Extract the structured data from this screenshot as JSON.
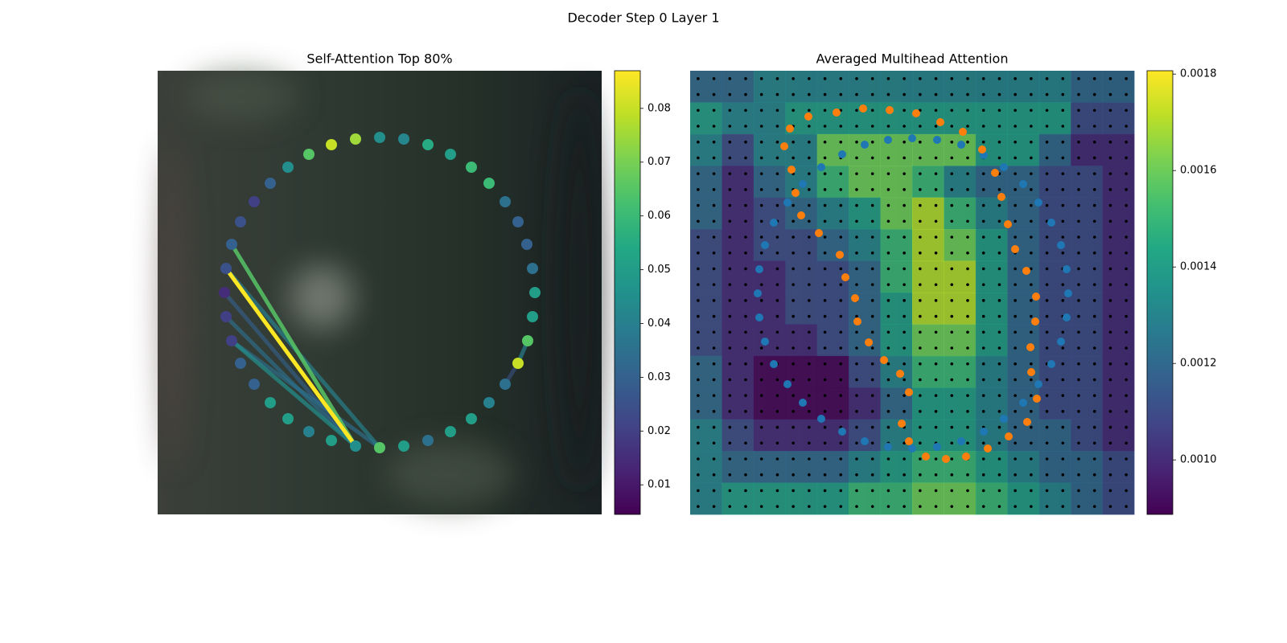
{
  "title": "Decoder Step 0 Layer 1",
  "chart_data": [
    {
      "type": "scatter",
      "title": "Self-Attention Top 80%",
      "cmap": "viridis",
      "xlim": [
        0,
        552
      ],
      "ylim": [
        552,
        0
      ],
      "x": [
        276,
        306,
        336,
        364,
        390,
        412,
        432,
        448,
        459,
        466,
        469,
        466,
        460,
        448,
        432,
        412,
        390,
        364,
        336,
        306,
        276,
        246,
        216,
        188,
        162,
        140,
        120,
        103,
        92,
        85,
        83,
        85,
        92,
        103,
        120,
        140,
        162,
        188,
        216,
        246
      ],
      "y": [
        83,
        85,
        92,
        104,
        120,
        140,
        163,
        188,
        216,
        246,
        276,
        306,
        336,
        364,
        390,
        413,
        433,
        449,
        460,
        467,
        469,
        467,
        460,
        449,
        433,
        413,
        390,
        364,
        336,
        306,
        276,
        246,
        216,
        188,
        163,
        140,
        120,
        104,
        92,
        85
      ],
      "values": [
        0.045,
        0.042,
        0.055,
        0.05,
        0.06,
        0.06,
        0.035,
        0.03,
        0.03,
        0.035,
        0.05,
        0.05,
        0.065,
        0.08,
        0.035,
        0.04,
        0.05,
        0.05,
        0.035,
        0.05,
        0.065,
        0.045,
        0.05,
        0.04,
        0.05,
        0.05,
        0.03,
        0.03,
        0.02,
        0.02,
        0.015,
        0.025,
        0.03,
        0.025,
        0.02,
        0.03,
        0.045,
        0.065,
        0.08,
        0.075
      ],
      "links": {
        "from": [
          21,
          21,
          21,
          21,
          21,
          20,
          20,
          12,
          13
        ],
        "to": [
          32,
          31,
          28,
          29,
          30,
          31,
          28,
          13,
          14
        ],
        "values": [
          0.065,
          0.087,
          0.045,
          0.035,
          0.03,
          0.04,
          0.035,
          0.04,
          0.025
        ]
      },
      "clim": [
        0.0045,
        0.087
      ],
      "cticks": [
        0.01,
        0.02,
        0.03,
        0.04,
        0.05,
        0.06,
        0.07,
        0.08
      ]
    },
    {
      "type": "heatmap",
      "title": "Averaged Multihead Attention",
      "cmap": "viridis",
      "xlim": [
        0,
        552
      ],
      "ylim": [
        552,
        0
      ],
      "z": [
        [
          0.0012,
          0.0012,
          0.0013,
          0.0013,
          0.0013,
          0.0013,
          0.0013,
          0.0013,
          0.0013,
          0.0013,
          0.0013,
          0.0013,
          0.0012,
          0.0012
        ],
        [
          0.0014,
          0.0013,
          0.0013,
          0.0014,
          0.0014,
          0.0014,
          0.0014,
          0.0014,
          0.0014,
          0.0014,
          0.0014,
          0.0014,
          0.0011,
          0.0011
        ],
        [
          0.0013,
          0.0011,
          0.0013,
          0.0013,
          0.0016,
          0.0016,
          0.0016,
          0.0016,
          0.0016,
          0.0014,
          0.0014,
          0.0012,
          0.001,
          0.001
        ],
        [
          0.0012,
          0.001,
          0.0012,
          0.0013,
          0.0015,
          0.0016,
          0.0016,
          0.0015,
          0.0013,
          0.0012,
          0.0012,
          0.0011,
          0.0011,
          0.001
        ],
        [
          0.0012,
          0.001,
          0.0011,
          0.0012,
          0.0013,
          0.0014,
          0.0016,
          0.0017,
          0.0015,
          0.0013,
          0.0012,
          0.0011,
          0.0011,
          0.001
        ],
        [
          0.0011,
          0.001,
          0.0011,
          0.0011,
          0.0012,
          0.0013,
          0.0015,
          0.0017,
          0.0016,
          0.0014,
          0.0012,
          0.0011,
          0.0011,
          0.001
        ],
        [
          0.0011,
          0.001,
          0.001,
          0.0011,
          0.0011,
          0.0012,
          0.0015,
          0.0017,
          0.0017,
          0.0014,
          0.0012,
          0.0011,
          0.0011,
          0.001
        ],
        [
          0.0011,
          0.001,
          0.001,
          0.0011,
          0.0011,
          0.0012,
          0.0014,
          0.0017,
          0.0017,
          0.0014,
          0.0012,
          0.0011,
          0.0011,
          0.001
        ],
        [
          0.0011,
          0.001,
          0.001,
          0.001,
          0.0011,
          0.0012,
          0.0014,
          0.0016,
          0.0016,
          0.0014,
          0.0012,
          0.0011,
          0.0011,
          0.001
        ],
        [
          0.0012,
          0.001,
          0.0009,
          0.0009,
          0.0009,
          0.0011,
          0.0013,
          0.0015,
          0.0015,
          0.0013,
          0.0012,
          0.0011,
          0.0011,
          0.001
        ],
        [
          0.0012,
          0.001,
          0.0009,
          0.0009,
          0.0009,
          0.001,
          0.0012,
          0.0014,
          0.0014,
          0.0013,
          0.0012,
          0.0011,
          0.0011,
          0.001
        ],
        [
          0.0013,
          0.0011,
          0.001,
          0.001,
          0.001,
          0.0011,
          0.0013,
          0.0014,
          0.0014,
          0.0013,
          0.0012,
          0.0012,
          0.0011,
          0.001
        ],
        [
          0.0013,
          0.0012,
          0.0012,
          0.0012,
          0.0012,
          0.0013,
          0.0014,
          0.0015,
          0.0015,
          0.0014,
          0.0013,
          0.0012,
          0.0012,
          0.0011
        ],
        [
          0.0013,
          0.0014,
          0.0014,
          0.0014,
          0.0014,
          0.0015,
          0.0015,
          0.0016,
          0.0016,
          0.0015,
          0.0014,
          0.0013,
          0.0012,
          0.0011
        ]
      ],
      "series": [
        {
          "color": "#1f77b4",
          "x": [
            86,
            84,
            86,
            93,
            104,
            121,
            140,
            163,
            189,
            217,
            246,
            276,
            307,
            337,
            365,
            390,
            414,
            433,
            449,
            461,
            468,
            470,
            468,
            461,
            449,
            433,
            414,
            390,
            365,
            337,
            307,
            276,
            246,
            217,
            189,
            163,
            140,
            121,
            104,
            93
          ],
          "y": [
            247,
            277,
            307,
            337,
            365,
            390,
            413,
            433,
            449,
            461,
            468,
            470,
            468,
            461,
            449,
            433,
            413,
            390,
            365,
            337,
            307,
            277,
            247,
            217,
            189,
            164,
            141,
            120,
            105,
            92,
            86,
            84,
            86,
            92,
            104,
            120,
            141,
            164,
            189,
            217
          ]
        },
        {
          "color": "#ff7f0e",
          "x": [
            117,
            124,
            147,
            182,
            215,
            248,
            281,
            311,
            339,
            363,
            379,
            387,
            395,
            404,
            418,
            430,
            429,
            423,
            424,
            431,
            419,
            396,
            370,
            343,
            318,
            293,
            272,
            263,
            272,
            261,
            241,
            222,
            208,
            205,
            193,
            186,
            160,
            138,
            131,
            126
          ],
          "y": [
            94,
            72,
            57,
            52,
            47,
            49,
            53,
            64,
            76,
            98,
            127,
            157,
            191,
            222,
            249,
            281,
            312,
            344,
            375,
            408,
            437,
            455,
            470,
            480,
            483,
            480,
            461,
            439,
            400,
            377,
            360,
            338,
            312,
            283,
            257,
            229,
            202,
            180,
            152,
            123
          ]
        }
      ],
      "clim": [
        0.000887,
        0.001807
      ],
      "cticks": [
        {
          "value": 0.001,
          "label": "0.0010"
        },
        {
          "value": 0.0012,
          "label": "0.0012"
        },
        {
          "value": 0.0014,
          "label": "0.0014"
        },
        {
          "value": 0.0016,
          "label": "0.0016"
        },
        {
          "value": 0.0018,
          "label": "0.0018"
        }
      ]
    }
  ]
}
